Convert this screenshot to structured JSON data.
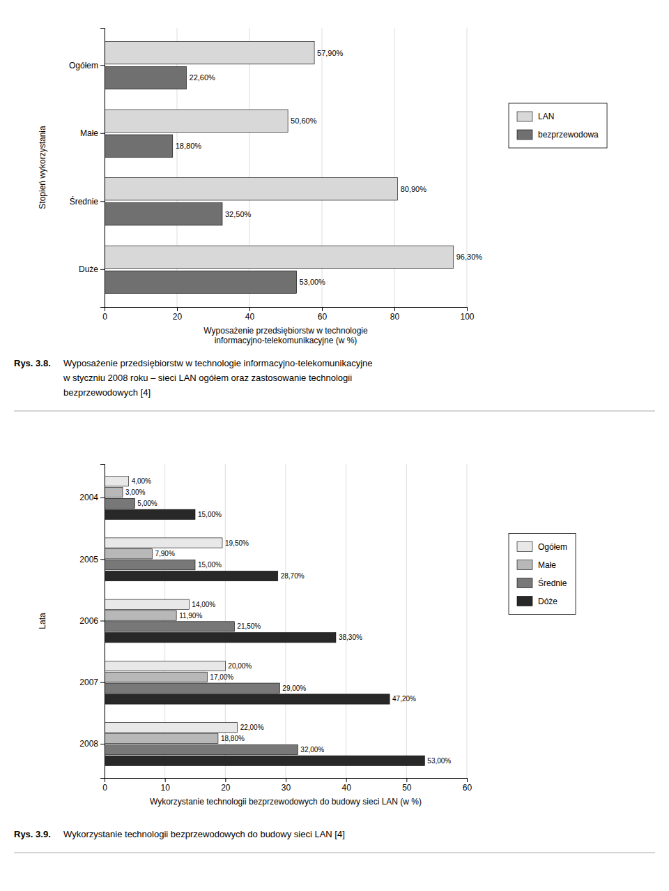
{
  "chart_data": [
    {
      "type": "bar",
      "orientation": "horizontal",
      "categories": [
        "Duże",
        "Średnie",
        "Małe",
        "Ogółem"
      ],
      "series": [
        {
          "name": "LAN",
          "color": "#d8d8d8",
          "values": [
            96.3,
            80.9,
            50.6,
            57.9
          ],
          "value_labels": [
            "96,30%",
            "80,90%",
            "50,60%",
            "57,90%"
          ]
        },
        {
          "name": "bezprzewodowa",
          "color": "#707070",
          "values": [
            53.0,
            32.5,
            18.8,
            22.6
          ],
          "value_labels": [
            "53,00%",
            "32,50%",
            "18,80%",
            "22,60%"
          ]
        }
      ],
      "xlabel": "Wyposażenie przedsiębiorstw w technologie\ninformacyjno-telekomunikacyjne (w %)",
      "ylabel": "Stopień wykorzystania",
      "xlim": [
        0,
        100
      ],
      "xticks": [
        0,
        20,
        40,
        60,
        80,
        100
      ],
      "grid": true,
      "legend": "right",
      "data_labels": true,
      "annotations": [
        "Rys. 3.8.",
        "Wyposażenie przedsiębiorstw w technologie informacyjno-telekomunikacyjne",
        "w styczniu 2008 roku – sieci LAN ogółem oraz zastosowanie technologii",
        "bezprzewodowych [4]"
      ]
    },
    {
      "type": "bar",
      "orientation": "horizontal",
      "categories": [
        "2008",
        "2007",
        "2006",
        "2005",
        "2004"
      ],
      "series": [
        {
          "name": "Ogółem",
          "color": "#e8e8e8",
          "values": [
            22.0,
            20.0,
            14.0,
            19.5,
            4.0
          ],
          "value_labels": [
            "22,00%",
            "20,00%",
            "14,00%",
            "19,50%",
            "4,00%"
          ]
        },
        {
          "name": "Małe",
          "color": "#b8b8b8",
          "values": [
            18.8,
            17.0,
            11.9,
            7.9,
            3.0
          ],
          "value_labels": [
            "18,80%",
            "17,00%",
            "11,90%",
            "7,90%",
            "3,00%"
          ]
        },
        {
          "name": "Średnie",
          "color": "#787878",
          "values": [
            32.0,
            29.0,
            21.5,
            15.0,
            5.0
          ],
          "value_labels": [
            "32,00%",
            "29,00%",
            "21,50%",
            "15,00%",
            "5,00%"
          ]
        },
        {
          "name": "Dóże",
          "color": "#282828",
          "values": [
            53.0,
            47.2,
            38.3,
            28.7,
            15.0
          ],
          "value_labels": [
            "53,00%",
            "47,20%",
            "38,30%",
            "28,70%",
            "15,00%"
          ]
        }
      ],
      "xlabel": "Wykorzystanie technologii bezprzewodowych do budowy sieci LAN (w %)",
      "ylabel": "Lata",
      "xlim": [
        0,
        60
      ],
      "xticks": [
        0,
        10,
        20,
        30,
        40,
        50,
        60
      ],
      "grid": true,
      "legend": "right",
      "data_labels": true,
      "annotations": [
        "Rys. 3.9.",
        "Wykorzystanie technologii bezprzewodowych do budowy sieci LAN [4]"
      ]
    }
  ]
}
